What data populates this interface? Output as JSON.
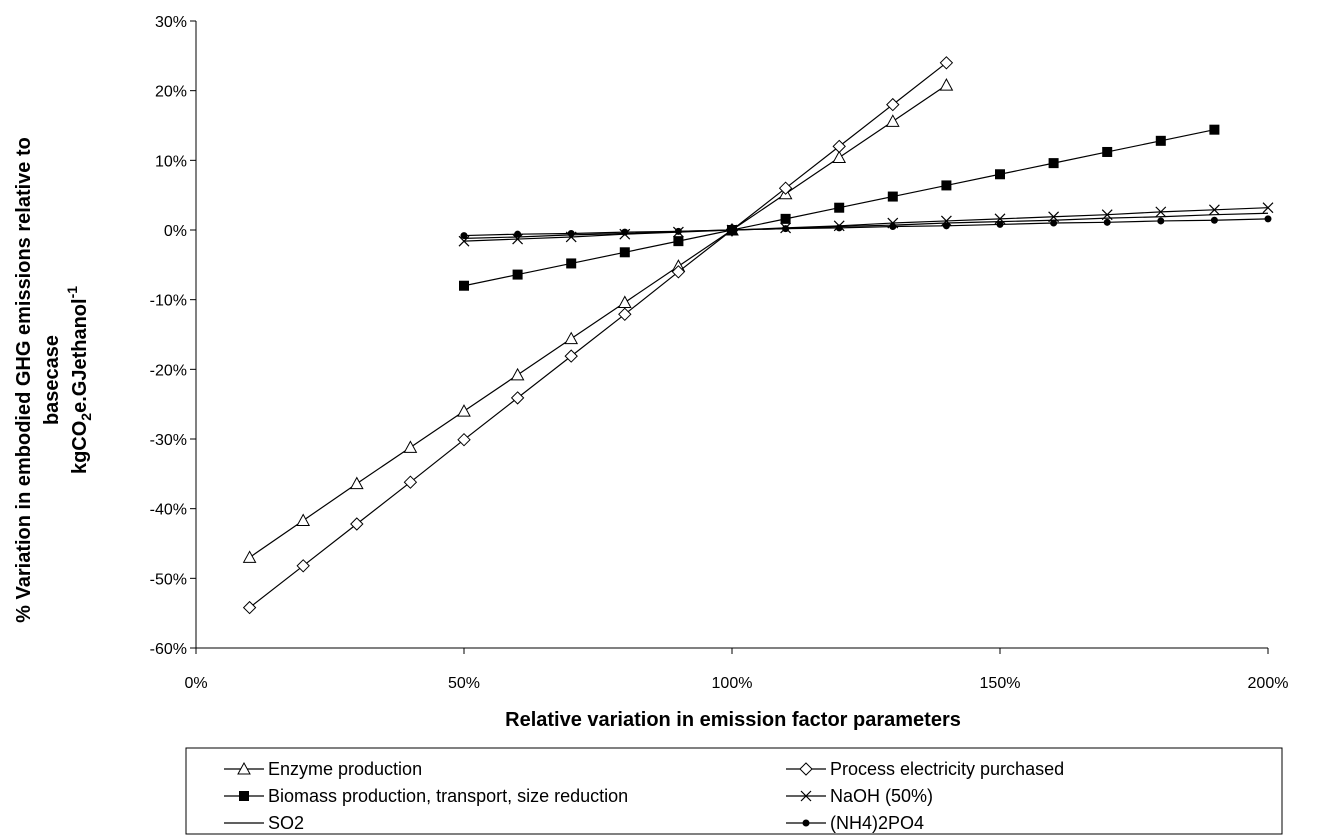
{
  "chart_data": {
    "type": "line",
    "title": "",
    "xlabel": "Relative variation in emission factor parameters",
    "ylabel_line1": "% Variation in embodied GHG emissions relative to",
    "ylabel_line2": "basecase",
    "ylabel_unit": {
      "prefix": "kgCO",
      "sub": "2",
      "mid": "e.GJethanol",
      "sup": "-1"
    },
    "xlim": [
      0,
      200
    ],
    "ylim": [
      -60,
      30
    ],
    "x_ticks": [
      0,
      50,
      100,
      150,
      200
    ],
    "x_tick_labels": [
      "0%",
      "50%",
      "100%",
      "150%",
      "200%"
    ],
    "y_ticks": [
      -60,
      -50,
      -40,
      -30,
      -20,
      -10,
      0,
      10,
      20,
      30
    ],
    "y_tick_labels": [
      "-60%",
      "-50%",
      "-40%",
      "-30%",
      "-20%",
      "-10%",
      "0%",
      "10%",
      "20%",
      "30%"
    ],
    "grid": false,
    "legend_position": "bottom",
    "series": [
      {
        "name": "Enzyme production",
        "marker": "triangle-open",
        "x": [
          10,
          20,
          30,
          40,
          50,
          60,
          70,
          80,
          90,
          100,
          110,
          120,
          130,
          140
        ],
        "y": [
          -47,
          -41.7,
          -36.4,
          -31.2,
          -26,
          -20.8,
          -15.6,
          -10.4,
          -5.2,
          0,
          5.2,
          10.4,
          15.6,
          20.8
        ]
      },
      {
        "name": "Process electricity purchased",
        "marker": "diamond-open",
        "x": [
          10,
          20,
          30,
          40,
          50,
          60,
          70,
          80,
          90,
          100,
          110,
          120,
          130,
          140
        ],
        "y": [
          -54.2,
          -48.2,
          -42.2,
          -36.2,
          -30.1,
          -24.1,
          -18.1,
          -12.1,
          -6,
          0,
          6,
          12,
          18,
          24
        ]
      },
      {
        "name": "Biomass production, transport, size reduction",
        "marker": "square-filled",
        "x": [
          50,
          60,
          70,
          80,
          90,
          100,
          110,
          120,
          130,
          140,
          150,
          160,
          170,
          180,
          190
        ],
        "y": [
          -8,
          -6.4,
          -4.8,
          -3.2,
          -1.6,
          0,
          1.6,
          3.2,
          4.8,
          6.4,
          8,
          9.6,
          11.2,
          12.8,
          14.4
        ]
      },
      {
        "name": "NaOH (50%)",
        "marker": "x",
        "x": [
          50,
          60,
          70,
          80,
          90,
          100,
          110,
          120,
          130,
          140,
          150,
          160,
          170,
          180,
          190,
          200
        ],
        "y": [
          -1.6,
          -1.3,
          -1,
          -0.6,
          -0.3,
          0,
          0.3,
          0.6,
          1,
          1.3,
          1.6,
          1.9,
          2.2,
          2.6,
          2.9,
          3.2
        ]
      },
      {
        "name": "SO2",
        "marker": "none",
        "x": [
          50,
          60,
          70,
          80,
          90,
          100,
          110,
          120,
          130,
          140,
          150,
          160,
          170,
          180,
          190,
          200
        ],
        "y": [
          -1.2,
          -1,
          -0.7,
          -0.5,
          -0.2,
          0,
          0.2,
          0.5,
          0.7,
          1,
          1.2,
          1.4,
          1.7,
          1.9,
          2.2,
          2.4
        ]
      },
      {
        "name": "(NH4)2PO4",
        "marker": "dot",
        "x": [
          50,
          60,
          70,
          80,
          90,
          100,
          110,
          120,
          130,
          140,
          150,
          160,
          170,
          180,
          190,
          200
        ],
        "y": [
          -0.8,
          -0.6,
          -0.5,
          -0.3,
          -0.2,
          0,
          0.2,
          0.3,
          0.5,
          0.6,
          0.8,
          1,
          1.1,
          1.3,
          1.4,
          1.6
        ]
      }
    ]
  }
}
